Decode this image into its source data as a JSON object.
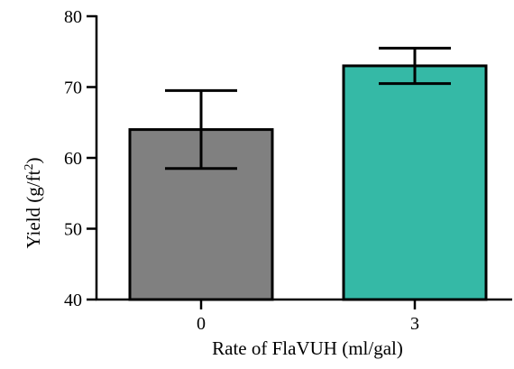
{
  "chart_data": {
    "type": "bar",
    "categories": [
      "0",
      "3"
    ],
    "values": [
      64,
      73
    ],
    "error_low": [
      58.5,
      70.5
    ],
    "error_high": [
      69.5,
      75.5
    ],
    "colors": [
      "#808080",
      "#35b9a6"
    ],
    "xlabel": "Rate of FlaVUH (ml/gal)",
    "ylabel_main": "Yield (g/ft",
    "ylabel_sup": "2",
    "ylabel_end": ")",
    "ylim": [
      40,
      80
    ],
    "yticks": [
      40,
      50,
      60,
      70,
      80
    ],
    "grid": false
  }
}
